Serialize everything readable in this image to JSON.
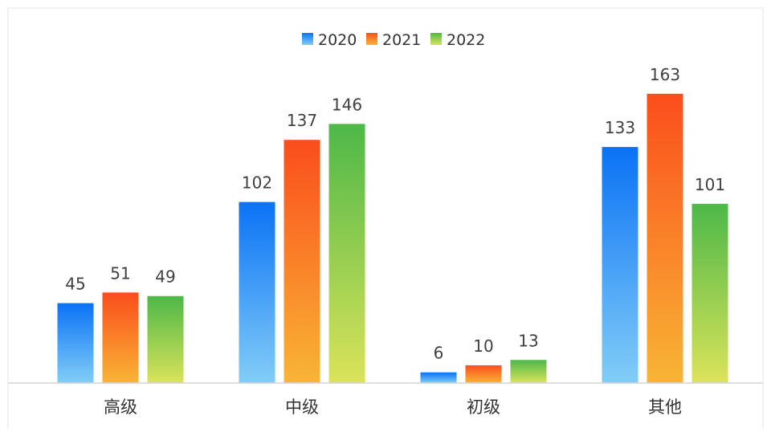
{
  "chart_data": {
    "type": "bar",
    "categories": [
      "高级",
      "中级",
      "初级",
      "其他"
    ],
    "series": [
      {
        "name": "2020",
        "values": [
          45,
          102,
          6,
          133
        ],
        "color_top": "#0a72f5",
        "color_bottom": "#82cdf7"
      },
      {
        "name": "2021",
        "values": [
          51,
          137,
          10,
          163
        ],
        "color_top": "#fb4d1c",
        "color_bottom": "#f8b535"
      },
      {
        "name": "2022",
        "values": [
          49,
          146,
          13,
          101
        ],
        "color_top": "#4db848",
        "color_bottom": "#dbe35a"
      }
    ],
    "ylim": [
      0,
      180
    ],
    "legend_position": "top",
    "grid": false,
    "show_data_labels": true
  }
}
